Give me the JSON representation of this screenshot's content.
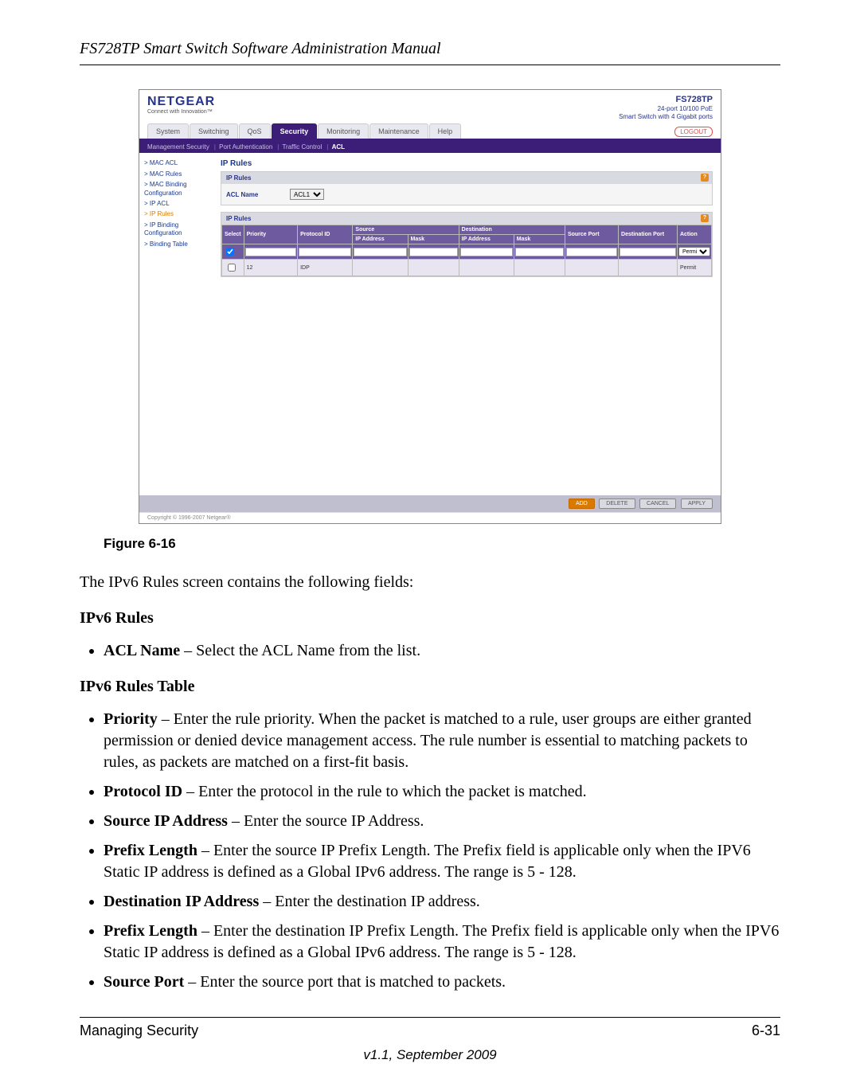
{
  "doc": {
    "header": "FS728TP Smart Switch Software Administration Manual",
    "figure_caption": "Figure 6-16",
    "intro": "The IPv6 Rules screen contains the following fields:",
    "section1_title": "IPv6 Rules",
    "bullet_acl": "ACL Name",
    "bullet_acl_desc": " – Select the ACL Name from the list.",
    "section2_title": "IPv6 Rules Table",
    "bullets": [
      {
        "t": "Priority",
        "d": " – Enter the rule priority. When the packet is matched to a rule, user groups are either granted permission or denied device management access. The rule number is essential to matching packets to rules, as packets are matched on a first-fit basis."
      },
      {
        "t": "Protocol ID",
        "d": " – Enter the protocol in the rule to which the packet is matched."
      },
      {
        "t": "Source IP Address",
        "d": " – Enter the source IP Address."
      },
      {
        "t": "Prefix Length",
        "d": " – Enter the source IP Prefix Length. The Prefix field is applicable only when the IPV6 Static IP address is defined as a Global IPv6 address. The range is 5 - 128."
      },
      {
        "t": "Destination IP Address",
        "d": " – Enter the destination IP address."
      },
      {
        "t": "Prefix Length",
        "d": " – Enter the destination IP Prefix Length. The Prefix field is applicable only when the IPV6 Static IP address is defined as a Global IPv6 address. The range is 5 - 128."
      },
      {
        "t": "Source Port",
        "d": " – Enter the source port that is matched to packets."
      }
    ],
    "footer_left": "Managing Security",
    "footer_right": "6-31",
    "version": "v1.1, September 2009"
  },
  "ss": {
    "brand": "NETGEAR",
    "tagline": "Connect with Innovation™",
    "model": "FS728TP",
    "model_desc1": "24-port 10/100 PoE",
    "model_desc2": "Smart Switch with 4 Gigabit ports",
    "tabs": [
      "System",
      "Switching",
      "QoS",
      "Security",
      "Monitoring",
      "Maintenance",
      "Help"
    ],
    "active_tab": "Security",
    "logout": "LOGOUT",
    "subtabs": [
      "Management Security",
      "Port Authentication",
      "Traffic Control",
      "ACL"
    ],
    "subtab_active": "ACL",
    "sidebar": [
      {
        "t": "> MAC ACL"
      },
      {
        "t": "> MAC Rules"
      },
      {
        "t": "> MAC Binding Configuration"
      },
      {
        "t": "> IP ACL"
      },
      {
        "t": "> IP Rules",
        "sel": true
      },
      {
        "t": "> IP Binding Configuration"
      },
      {
        "t": "> Binding Table"
      }
    ],
    "section_title": "IP Rules",
    "panel1_title": "IP Rules",
    "acl_label": "ACL Name",
    "acl_value": "ACL1",
    "panel2_title": "IP Rules",
    "headers": {
      "select": "Select",
      "priority": "Priority",
      "proto": "Protocol ID",
      "source": "Source",
      "dest": "Destination",
      "sport": "Source Port",
      "dport": "Destination Port",
      "action": "Action",
      "ip": "IP Address",
      "mask": "Mask"
    },
    "row": {
      "priority": "12",
      "proto": "IDP",
      "action": "Permit"
    },
    "action_opt": "Permit",
    "buttons": {
      "add": "ADD",
      "delete": "DELETE",
      "cancel": "CANCEL",
      "apply": "APPLY"
    },
    "copyright": "Copyright © 1996-2007 Netgear®"
  }
}
